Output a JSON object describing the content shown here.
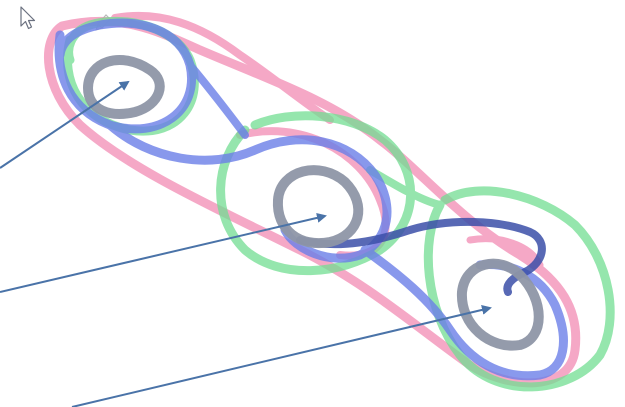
{
  "colors": {
    "pink": "#f28cb4",
    "green": "#72dd92",
    "blue": "#6b7fe8",
    "gray": "#8e96a6",
    "navy": "#3b4fa8",
    "pointer": "#4a73a8"
  },
  "icons": {
    "cursor": "arrow-cursor-icon",
    "pen": "pen-icon"
  },
  "ink": {
    "pink_layer": "pink-highlighter-stroke",
    "green_layer": "green-highlighter-stroke",
    "blue_layer": "blue-highlighter-stroke",
    "gray_layer": "gray-pen-stroke",
    "navy_layer": "navy-pen-stroke"
  },
  "arrows": {
    "count": 3
  }
}
